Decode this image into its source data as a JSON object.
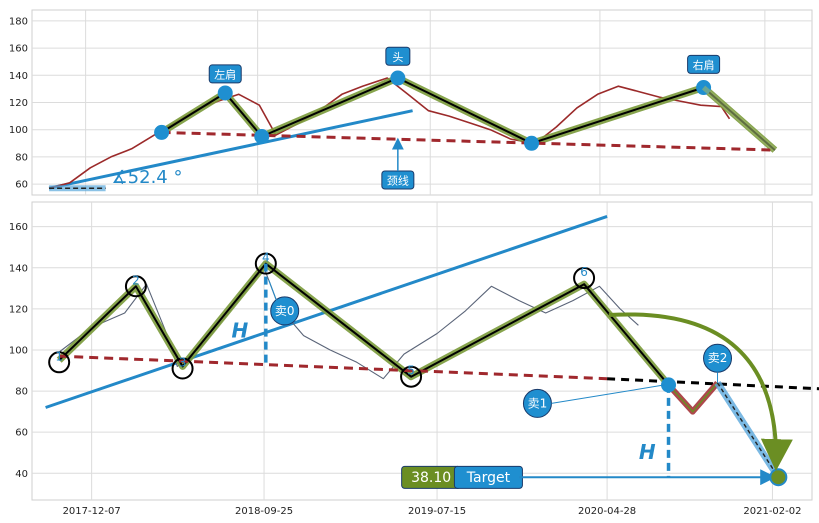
{
  "chart_data": [
    {
      "type": "line",
      "panel": "top",
      "title": "",
      "xlabel": "",
      "ylabel": "",
      "ylim": [
        52,
        188
      ],
      "yticks": [
        60,
        80,
        100,
        120,
        140,
        160,
        180
      ],
      "grid": true,
      "series": [
        {
          "role": "price",
          "color": "#9b2a2a",
          "points": [
            [
              "2017-10-06",
              57
            ],
            [
              "2017-11-10",
              61
            ],
            [
              "2017-12-15",
              72
            ],
            [
              "2018-01-19",
              80
            ],
            [
              "2018-02-23",
              86
            ],
            [
              "2018-04-06",
              97
            ],
            [
              "2018-05-11",
              106
            ],
            [
              "2018-06-15",
              115
            ],
            [
              "2018-07-20",
              121
            ],
            [
              "2018-08-24",
              126
            ],
            [
              "2018-09-28",
              118
            ],
            [
              "2018-10-26",
              96
            ],
            [
              "2018-11-30",
              104
            ],
            [
              "2019-01-11",
              115
            ],
            [
              "2019-02-15",
              126
            ],
            [
              "2019-03-22",
              132
            ],
            [
              "2019-05-03",
              138
            ],
            [
              "2019-06-07",
              126
            ],
            [
              "2019-07-12",
              114
            ],
            [
              "2019-08-16",
              110
            ],
            [
              "2019-09-20",
              105
            ],
            [
              "2019-10-25",
              100
            ],
            [
              "2019-11-29",
              93
            ],
            [
              "2020-01-10",
              90
            ],
            [
              "2020-02-14",
              102
            ],
            [
              "2020-03-20",
              116
            ],
            [
              "2020-04-24",
              126
            ],
            [
              "2020-05-29",
              132
            ],
            [
              "2020-07-03",
              128
            ],
            [
              "2020-08-07",
              124
            ],
            [
              "2020-09-11",
              121
            ],
            [
              "2020-10-16",
              118
            ],
            [
              "2020-11-20",
              117
            ],
            [
              "2020-12-04",
              108
            ]
          ]
        },
        {
          "role": "pattern",
          "color": "#000000",
          "points": [
            [
              "2018-04-15",
              98
            ],
            [
              "2018-08-01",
              127
            ],
            [
              "2018-10-02",
              95
            ],
            [
              "2019-05-21",
              138
            ],
            [
              "2020-01-03",
              90
            ],
            [
              "2020-10-21",
              131
            ],
            [
              "2021-02-19",
              85
            ]
          ]
        },
        {
          "role": "neckline",
          "color": "#a0282d",
          "style": "dashed",
          "points": [
            [
              "2018-04-15",
              98
            ],
            [
              "2021-02-19",
              85
            ]
          ]
        },
        {
          "role": "trendline",
          "color": "#2389c8",
          "points": [
            [
              "2017-10-06",
              57
            ],
            [
              "2019-06-15",
              114
            ]
          ]
        },
        {
          "role": "baseline",
          "color": "#555555",
          "style": "dashed",
          "points": [
            [
              "2017-10-06",
              57
            ],
            [
              "2018-01-10",
              57
            ]
          ]
        }
      ],
      "markers": [
        [
          "2018-04-15",
          98
        ],
        [
          "2018-08-01",
          127
        ],
        [
          "2018-10-02",
          95
        ],
        [
          "2019-05-21",
          138
        ],
        [
          "2020-01-03",
          90
        ],
        [
          "2020-10-21",
          131
        ]
      ],
      "annotations": [
        {
          "text": "左肩",
          "x": "2018-08-01",
          "y": 141,
          "box": "#1f8fd0"
        },
        {
          "text": "头",
          "x": "2019-05-21",
          "y": 154,
          "box": "#1f8fd0"
        },
        {
          "text": "右肩",
          "x": "2020-10-21",
          "y": 148,
          "box": "#1f8fd0"
        },
        {
          "text": "颈线",
          "x": "2019-05-21",
          "y": 63,
          "box": "#1f8fd0",
          "arrow_to_y": 96
        },
        {
          "text": "∡52.4 °",
          "x": "2018-01-20",
          "y": 61,
          "style": "plain",
          "color": "#2389c8"
        }
      ]
    },
    {
      "type": "line",
      "panel": "bottom",
      "title": "",
      "xlabel": "",
      "ylabel": "",
      "ylim": [
        27,
        172
      ],
      "yticks": [
        40,
        60,
        80,
        100,
        120,
        140,
        160
      ],
      "xticks": [
        "2017-12-07",
        "2018-09-25",
        "2019-07-15",
        "2020-04-28",
        "2021-02-02"
      ],
      "grid": true,
      "series": [
        {
          "role": "price",
          "color": "#5a6478",
          "points": [
            [
              "2017-10-13",
              99
            ],
            [
              "2017-12-07",
              111
            ],
            [
              "2018-02-01",
              118
            ],
            [
              "2018-03-10",
              132
            ],
            [
              "2018-04-10",
              110
            ],
            [
              "2018-05-01",
              92
            ],
            [
              "2018-06-15",
              103
            ],
            [
              "2018-08-01",
              120
            ],
            [
              "2018-09-25",
              140
            ],
            [
              "2018-10-20",
              121
            ],
            [
              "2018-12-01",
              107
            ],
            [
              "2019-01-15",
              100
            ],
            [
              "2019-03-01",
              94
            ],
            [
              "2019-04-15",
              86
            ],
            [
              "2019-05-20",
              98
            ],
            [
              "2019-07-15",
              108
            ],
            [
              "2019-09-01",
              119
            ],
            [
              "2019-10-15",
              131
            ],
            [
              "2019-12-01",
              124
            ],
            [
              "2020-01-15",
              118
            ],
            [
              "2020-03-01",
              124
            ],
            [
              "2020-04-15",
              131
            ],
            [
              "2020-05-20",
              120
            ],
            [
              "2020-06-20",
              112
            ]
          ]
        },
        {
          "role": "pattern",
          "color": "#000000",
          "points": [
            [
              "2017-10-13",
              95
            ],
            [
              "2018-02-20",
              131
            ],
            [
              "2018-05-10",
              92
            ],
            [
              "2018-09-28",
              142
            ],
            [
              "2019-06-01",
              87
            ],
            [
              "2020-03-20",
              132
            ],
            [
              "2020-08-10",
              83
            ]
          ]
        },
        {
          "role": "neckline",
          "color": "#a0282d",
          "style": "dashed",
          "points": [
            [
              "2017-10-13",
              97
            ],
            [
              "2020-04-28",
              86
            ]
          ]
        },
        {
          "role": "neckline-extension",
          "color": "#000000",
          "style": "dashed",
          "points": [
            [
              "2020-04-28",
              86
            ],
            [
              "2021-05-01",
              81
            ]
          ]
        },
        {
          "role": "trendline",
          "color": "#2389c8",
          "points": [
            [
              "2017-09-20",
              72
            ],
            [
              "2020-04-28",
              165
            ]
          ]
        },
        {
          "role": "retest",
          "color": "#a0282d",
          "points": [
            [
              "2020-08-10",
              83
            ],
            [
              "2020-09-20",
              70
            ],
            [
              "2020-11-01",
              84
            ]
          ]
        },
        {
          "role": "projection",
          "color": "#2389c8",
          "points": [
            [
              "2020-11-01",
              84
            ],
            [
              "2021-02-12",
              38.1
            ]
          ]
        }
      ],
      "points_labeled": [
        {
          "label": "1",
          "x": "2017-10-13",
          "y": 94
        },
        {
          "label": "2",
          "x": "2018-02-20",
          "y": 131
        },
        {
          "label": "3",
          "x": "2018-05-10",
          "y": 91
        },
        {
          "label": "4",
          "x": "2018-09-28",
          "y": 142
        },
        {
          "label": "5",
          "x": "2019-06-01",
          "y": 87
        },
        {
          "label": "6",
          "x": "2020-03-20",
          "y": 135
        }
      ],
      "annotations": [
        {
          "text": "卖0",
          "x": "2018-10-30",
          "y": 119,
          "style": "circle"
        },
        {
          "text": "卖1",
          "x": "2020-01-01",
          "y": 74,
          "style": "circle"
        },
        {
          "text": "卖2",
          "x": "2020-11-01",
          "y": 96,
          "style": "circle"
        },
        {
          "text": "H",
          "x": "2018-08-15",
          "y": 106,
          "style": "italic"
        },
        {
          "text": "H",
          "x": "2020-07-05",
          "y": 47,
          "style": "italic"
        },
        {
          "text": "38.10",
          "x": "2019-07-05",
          "y": 38,
          "box": "#6b8e23"
        },
        {
          "text": "Target",
          "x": "2019-10-10",
          "y": 38,
          "box": "#1f8fd0"
        }
      ]
    }
  ]
}
